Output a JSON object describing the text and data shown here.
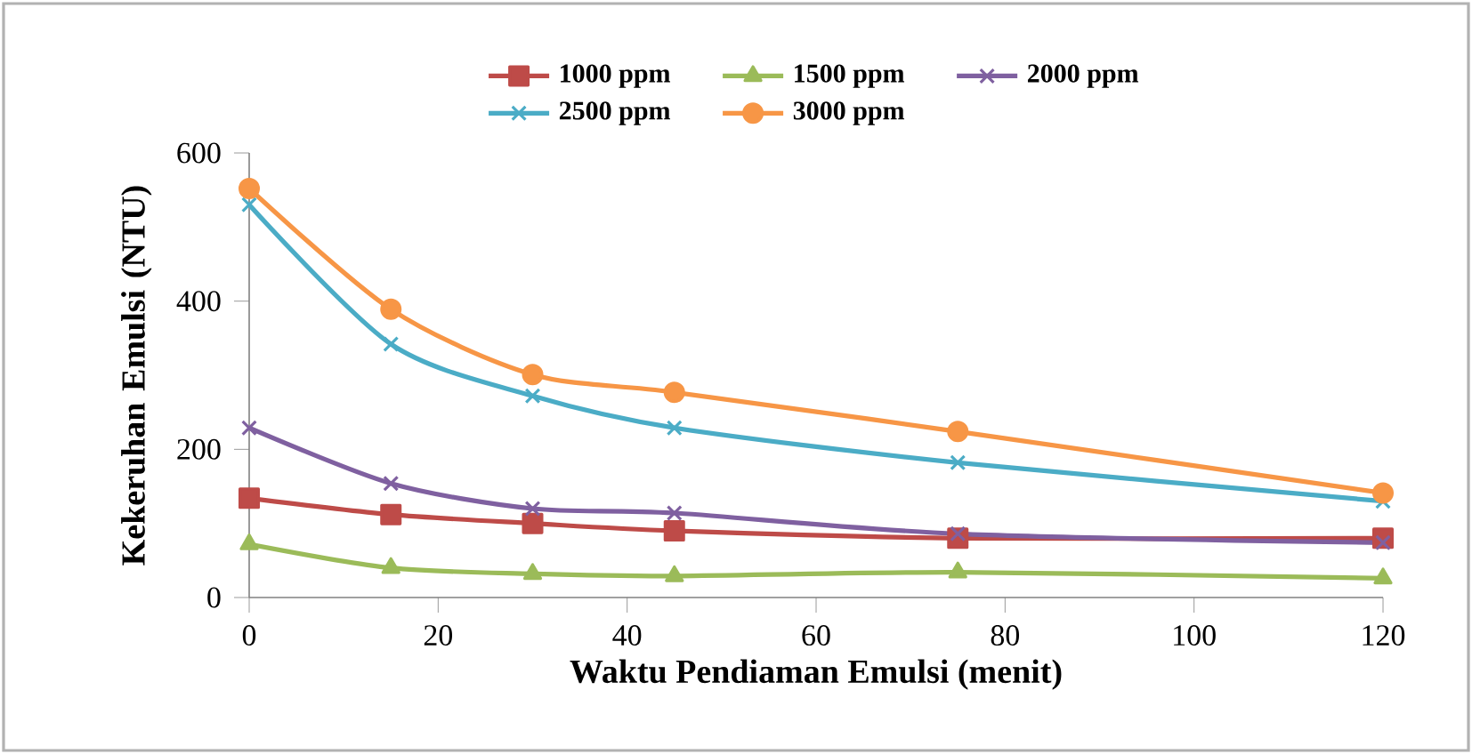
{
  "chart_data": {
    "type": "line",
    "xlabel": "Waktu Pendiaman Emulsi (menit)",
    "ylabel": "Kekeruhan Emulsi (NTU)",
    "x": [
      0,
      15,
      30,
      45,
      75,
      120
    ],
    "series": [
      {
        "name": "1000 ppm",
        "color": "#be4b48",
        "marker": "square",
        "values": [
          134,
          112,
          100,
          90,
          80,
          80
        ]
      },
      {
        "name": "1500 ppm",
        "color": "#9bbb59",
        "marker": "triangle",
        "values": [
          72,
          40,
          32,
          29,
          34,
          26
        ]
      },
      {
        "name": "2000 ppm",
        "color": "#7f60a0",
        "marker": "cross",
        "values": [
          229,
          154,
          120,
          114,
          86,
          74
        ]
      },
      {
        "name": "2500 ppm",
        "color": "#4bacc6",
        "marker": "cross",
        "values": [
          530,
          342,
          272,
          229,
          182,
          130
        ]
      },
      {
        "name": "3000 ppm",
        "color": "#f79646",
        "marker": "circle",
        "values": [
          552,
          389,
          301,
          277,
          224,
          141
        ]
      }
    ],
    "xlim": [
      0,
      120
    ],
    "xticks": [
      0,
      20,
      40,
      60,
      80,
      100,
      120
    ],
    "ylim": [
      0,
      600
    ],
    "yticks": [
      0,
      200,
      400,
      600
    ],
    "grid": false,
    "legend": "top",
    "line_style": "solid"
  }
}
